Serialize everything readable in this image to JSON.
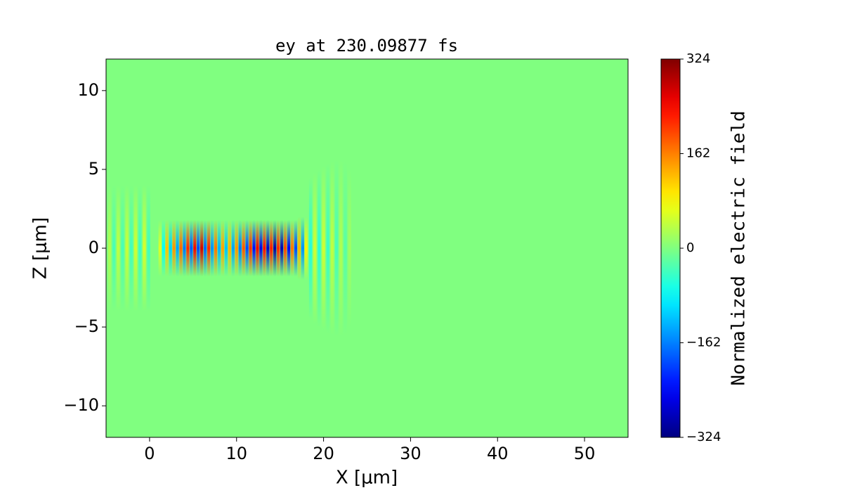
{
  "chart_data": {
    "type": "heatmap",
    "title": "ey at 230.09877 fs",
    "xlabel": "X [μm]",
    "ylabel": "Z [μm]",
    "xlim": [
      -5,
      55
    ],
    "ylim": [
      -12,
      12
    ],
    "xticks": [
      0,
      10,
      20,
      30,
      40,
      50
    ],
    "yticks": [
      {
        "value": -10,
        "label": "−10"
      },
      {
        "value": -5,
        "label": "−5"
      },
      0,
      5,
      10
    ],
    "colormap": "jet",
    "background": 0,
    "colorbar": {
      "label": "Normalized electric field",
      "clim": [
        -324,
        324
      ],
      "ticks": [
        {
          "value": -324,
          "label": "−324"
        },
        {
          "value": -162,
          "label": "−162"
        },
        0,
        162,
        324
      ]
    },
    "stripes": {
      "x": [
        -4.6,
        -4.1,
        -3.6,
        -3.1,
        -2.6,
        -2.1,
        -1.6,
        -1.1,
        -0.6,
        -0.1,
        1.2,
        1.6,
        2.0,
        2.4,
        2.8,
        3.2,
        3.6,
        4.0,
        4.4,
        4.8,
        5.2,
        5.6,
        6.0,
        6.4,
        6.8,
        7.2,
        7.6,
        8.0,
        8.4,
        8.8,
        9.2,
        9.6,
        10.0,
        10.4,
        10.8,
        11.2,
        11.6,
        12.0,
        12.4,
        12.8,
        13.2,
        13.6,
        14.0,
        14.4,
        14.8,
        15.2,
        15.6,
        16.0,
        16.4,
        16.8,
        17.2,
        17.6,
        18.0,
        18.5,
        19.0,
        19.5,
        20.0,
        20.5,
        21.0,
        21.5,
        22.0,
        22.5,
        23.0
      ],
      "z_half": [
        4.0,
        4.0,
        4.0,
        4.0,
        4.0,
        4.0,
        4.0,
        4.0,
        4.0,
        4.0,
        1.8,
        1.8,
        1.8,
        1.8,
        1.8,
        1.8,
        1.8,
        1.8,
        1.8,
        1.8,
        1.8,
        1.8,
        1.8,
        1.8,
        1.8,
        1.8,
        1.8,
        1.8,
        1.8,
        1.8,
        1.8,
        1.8,
        1.8,
        1.8,
        1.8,
        1.8,
        1.8,
        1.8,
        1.8,
        1.8,
        1.8,
        1.8,
        1.8,
        1.8,
        1.8,
        1.8,
        1.8,
        1.8,
        1.8,
        1.8,
        2.0,
        2.0,
        2.0,
        4.5,
        4.8,
        5.0,
        5.2,
        5.4,
        5.5,
        5.6,
        5.6,
        5.5,
        5.0
      ],
      "values": [
        30,
        -35,
        40,
        -35,
        45,
        -40,
        50,
        -45,
        55,
        -40,
        60,
        -80,
        120,
        -110,
        150,
        -140,
        180,
        -170,
        220,
        -190,
        250,
        -200,
        270,
        -180,
        220,
        -150,
        170,
        -130,
        140,
        -120,
        130,
        -140,
        150,
        -170,
        190,
        -200,
        220,
        -240,
        250,
        -260,
        240,
        -280,
        230,
        -300,
        220,
        -290,
        200,
        -250,
        170,
        -200,
        130,
        -150,
        90,
        -60,
        50,
        -55,
        50,
        -45,
        40,
        -35,
        30,
        -25,
        20
      ]
    }
  }
}
